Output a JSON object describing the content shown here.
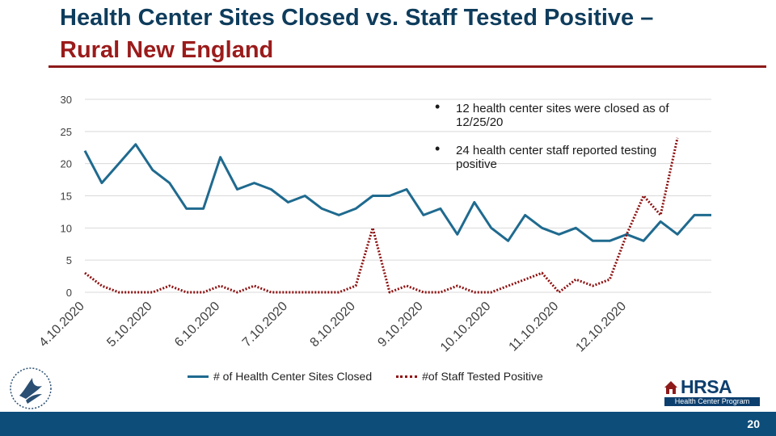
{
  "slide": {
    "title_line1": "Health Center Sites Closed vs. Staff Tested Positive –",
    "title_line2": "Rural New England",
    "page_number": "20"
  },
  "bullets": [
    {
      "text": "12 health center sites were closed as of 12/25/20"
    },
    {
      "text": "24 health center staff reported testing positive"
    }
  ],
  "logos": {
    "hrsa_word": "HRSA",
    "hrsa_sub": "Health Center Program"
  },
  "colors": {
    "title": "#0e3c5c",
    "title_accent": "#9b1b1b",
    "closed_series": "#1f6a8f",
    "positive_series": "#8e1111",
    "footer": "#0d4d7a"
  },
  "chart_data": {
    "type": "line",
    "title": "",
    "xlabel": "",
    "ylabel": "",
    "ylim": [
      0,
      30
    ],
    "yticks": [
      0,
      5,
      10,
      15,
      20,
      25,
      30
    ],
    "x_tick_labels": [
      "4.10.2020",
      "5.10.2020",
      "6.10.2020",
      "7.10.2020",
      "8.10.2020",
      "9.10.2020",
      "10.10.2020",
      "11.10.2020",
      "12.10.2020"
    ],
    "x_tick_index": [
      0,
      4,
      8,
      12,
      16,
      20,
      24,
      28,
      32
    ],
    "series": [
      {
        "name": "# of Health Center Sites Closed",
        "style": "solid",
        "values": [
          22,
          17,
          20,
          23,
          19,
          17,
          13,
          13,
          21,
          16,
          17,
          16,
          14,
          15,
          13,
          12,
          13,
          15,
          15,
          16,
          12,
          13,
          9,
          14,
          10,
          8,
          12,
          10,
          9,
          10,
          8,
          8,
          9,
          8,
          11,
          9,
          12,
          12
        ]
      },
      {
        "name": "#of Staff Tested Positive",
        "style": "dotted",
        "values": [
          3,
          1,
          0,
          0,
          0,
          1,
          0,
          0,
          1,
          0,
          1,
          0,
          0,
          0,
          0,
          0,
          1,
          10,
          0,
          1,
          0,
          0,
          1,
          0,
          0,
          1,
          2,
          3,
          0,
          2,
          1,
          2,
          9,
          15,
          12,
          24
        ]
      }
    ],
    "legend_position": "bottom"
  }
}
